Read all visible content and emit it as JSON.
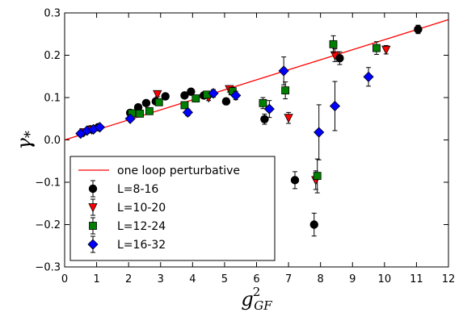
{
  "chart_data": {
    "type": "scatter",
    "xlabel": "g²_GF",
    "xlabel_base": "g",
    "xlabel_sup": "2",
    "xlabel_sub": "GF",
    "ylabel": "γ*",
    "ylabel_base": "γ",
    "ylabel_sub": "*",
    "xlim": [
      0,
      12
    ],
    "ylim": [
      -0.3,
      0.3
    ],
    "xticks": [
      0,
      1,
      2,
      3,
      4,
      5,
      6,
      7,
      8,
      9,
      10,
      11,
      12
    ],
    "yticks": [
      -0.3,
      -0.2,
      -0.1,
      0.0,
      0.1,
      0.2,
      0.3
    ],
    "xtick_labels": [
      "0",
      "1",
      "2",
      "3",
      "4",
      "5",
      "6",
      "7",
      "8",
      "9",
      "10",
      "11",
      "12"
    ],
    "ytick_labels": [
      "−0.3",
      "−0.2",
      "−0.1",
      "0.0",
      "0.1",
      "0.2",
      "0.3"
    ],
    "grid": false,
    "legend_position": "lower-left",
    "line": {
      "name": "one loop perturbative",
      "color": "#ff0000",
      "x": [
        0,
        12
      ],
      "y": [
        0,
        0.284
      ]
    },
    "series": [
      {
        "name": "L=8-16",
        "marker": "circle",
        "color": "#000000",
        "points": [
          {
            "x": 0.55,
            "y": 0.017,
            "err": 0.004
          },
          {
            "x": 0.8,
            "y": 0.025,
            "err": 0.004
          },
          {
            "x": 1.05,
            "y": 0.03,
            "err": 0.005
          },
          {
            "x": 2.05,
            "y": 0.064,
            "err": 0.005
          },
          {
            "x": 2.3,
            "y": 0.077,
            "err": 0.005
          },
          {
            "x": 2.55,
            "y": 0.087,
            "err": 0.005
          },
          {
            "x": 2.85,
            "y": 0.091,
            "err": 0.005
          },
          {
            "x": 3.15,
            "y": 0.103,
            "err": 0.006
          },
          {
            "x": 3.75,
            "y": 0.105,
            "err": 0.006
          },
          {
            "x": 3.95,
            "y": 0.114,
            "err": 0.006
          },
          {
            "x": 4.35,
            "y": 0.105,
            "err": 0.007
          },
          {
            "x": 5.05,
            "y": 0.091,
            "err": 0.008
          },
          {
            "x": 6.25,
            "y": 0.049,
            "err": 0.012
          },
          {
            "x": 7.2,
            "y": -0.095,
            "err": 0.02
          },
          {
            "x": 7.8,
            "y": -0.2,
            "err": 0.027
          },
          {
            "x": 8.6,
            "y": 0.193,
            "err": 0.015
          },
          {
            "x": 11.05,
            "y": 0.261,
            "err": 0.01
          }
        ]
      },
      {
        "name": "L=10-20",
        "marker": "triangle-down",
        "color": "#ff0000",
        "points": [
          {
            "x": 0.6,
            "y": 0.018,
            "err": 0.004
          },
          {
            "x": 0.85,
            "y": 0.024,
            "err": 0.004
          },
          {
            "x": 2.9,
            "y": 0.108,
            "err": 0.006
          },
          {
            "x": 4.5,
            "y": 0.1,
            "err": 0.007
          },
          {
            "x": 5.15,
            "y": 0.12,
            "err": 0.007
          },
          {
            "x": 7.0,
            "y": 0.052,
            "err": 0.013
          },
          {
            "x": 7.85,
            "y": -0.095,
            "err": 0.022
          },
          {
            "x": 8.45,
            "y": 0.2,
            "err": 0.015
          },
          {
            "x": 10.05,
            "y": 0.213,
            "err": 0.01
          }
        ]
      },
      {
        "name": "L=12-24",
        "marker": "square",
        "color": "#008000",
        "points": [
          {
            "x": 2.1,
            "y": 0.063,
            "err": 0.005
          },
          {
            "x": 2.35,
            "y": 0.062,
            "err": 0.005
          },
          {
            "x": 2.65,
            "y": 0.068,
            "err": 0.005
          },
          {
            "x": 2.95,
            "y": 0.089,
            "err": 0.006
          },
          {
            "x": 3.75,
            "y": 0.082,
            "err": 0.007
          },
          {
            "x": 4.1,
            "y": 0.098,
            "err": 0.007
          },
          {
            "x": 4.45,
            "y": 0.107,
            "err": 0.008
          },
          {
            "x": 5.25,
            "y": 0.115,
            "err": 0.009
          },
          {
            "x": 6.2,
            "y": 0.087,
            "err": 0.013
          },
          {
            "x": 6.9,
            "y": 0.117,
            "err": 0.02
          },
          {
            "x": 7.9,
            "y": -0.085,
            "err": 0.04
          },
          {
            "x": 8.4,
            "y": 0.226,
            "err": 0.02
          },
          {
            "x": 9.75,
            "y": 0.217,
            "err": 0.015
          }
        ]
      },
      {
        "name": "L=16-32",
        "marker": "diamond",
        "color": "#0000ff",
        "points": [
          {
            "x": 0.5,
            "y": 0.015,
            "err": 0.004
          },
          {
            "x": 0.7,
            "y": 0.022,
            "err": 0.004
          },
          {
            "x": 0.9,
            "y": 0.025,
            "err": 0.004
          },
          {
            "x": 1.1,
            "y": 0.03,
            "err": 0.005
          },
          {
            "x": 2.05,
            "y": 0.05,
            "err": 0.006
          },
          {
            "x": 3.85,
            "y": 0.065,
            "err": 0.008
          },
          {
            "x": 4.65,
            "y": 0.11,
            "err": 0.009
          },
          {
            "x": 5.35,
            "y": 0.105,
            "err": 0.01
          },
          {
            "x": 6.4,
            "y": 0.073,
            "err": 0.02
          },
          {
            "x": 6.85,
            "y": 0.163,
            "err": 0.033
          },
          {
            "x": 7.95,
            "y": 0.018,
            "err": 0.065
          },
          {
            "x": 8.45,
            "y": 0.08,
            "err": 0.058
          },
          {
            "x": 9.5,
            "y": 0.149,
            "err": 0.022
          }
        ]
      }
    ]
  }
}
